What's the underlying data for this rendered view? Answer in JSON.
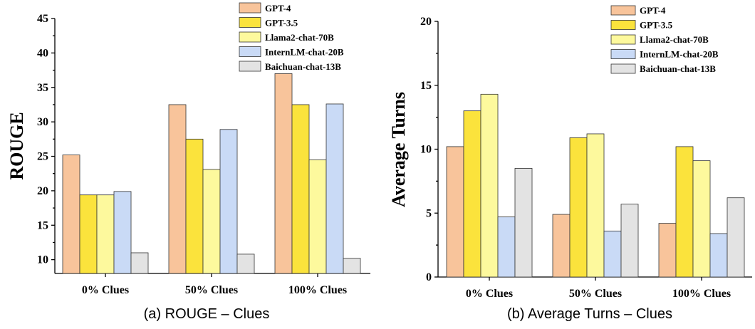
{
  "chart_data": [
    {
      "type": "bar",
      "id": "rouge",
      "caption": "(a)  ROUGE – Clues",
      "ylabel": "ROUGE",
      "xlabel": "",
      "categories": [
        "0% Clues",
        "50% Clues",
        "100% Clues"
      ],
      "ylim": [
        8,
        45
      ],
      "yticks": [
        10,
        15,
        20,
        25,
        30,
        35,
        40,
        45
      ],
      "legend_position": "top-right",
      "series": [
        {
          "name": "GPT-4",
          "color": "#F8C49B",
          "values": [
            25.2,
            32.5,
            37.0
          ]
        },
        {
          "name": "GPT-3.5",
          "color": "#FBE33C",
          "values": [
            19.4,
            27.5,
            32.5
          ]
        },
        {
          "name": "Llama2-chat-70B",
          "color": "#FDF99D",
          "values": [
            19.4,
            23.1,
            24.5
          ]
        },
        {
          "name": "InternLM-chat-20B",
          "color": "#C9DAF6",
          "values": [
            19.9,
            28.9,
            32.6
          ]
        },
        {
          "name": "Baichuan-chat-13B",
          "color": "#E3E3E3",
          "values": [
            11.0,
            10.8,
            10.2
          ]
        }
      ]
    },
    {
      "type": "bar",
      "id": "turns",
      "caption": "(b)  Average Turns – Clues",
      "ylabel": "Average Turns",
      "xlabel": "",
      "categories": [
        "0% Clues",
        "50% Clues",
        "100% Clues"
      ],
      "ylim": [
        0,
        20
      ],
      "yticks": [
        0,
        5,
        10,
        15,
        20
      ],
      "legend_position": "top-right",
      "series": [
        {
          "name": "GPT-4",
          "color": "#F8C49B",
          "values": [
            10.2,
            4.9,
            4.2
          ]
        },
        {
          "name": "GPT-3.5",
          "color": "#FBE33C",
          "values": [
            13.0,
            10.9,
            10.2
          ]
        },
        {
          "name": "Llama2-chat-70B",
          "color": "#FDF99D",
          "values": [
            14.3,
            11.2,
            9.1
          ]
        },
        {
          "name": "InternLM-chat-20B",
          "color": "#C9DAF6",
          "values": [
            4.7,
            3.6,
            3.4
          ]
        },
        {
          "name": "Baichuan-chat-13B",
          "color": "#E3E3E3",
          "values": [
            8.5,
            5.7,
            6.2
          ]
        }
      ]
    }
  ]
}
